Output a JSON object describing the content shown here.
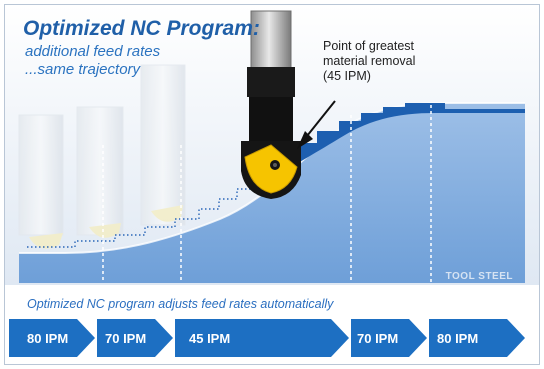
{
  "title": "Optimized NC Program:",
  "subtitle_lines": [
    "additional feed rates",
    "...same trajectory"
  ],
  "callout": {
    "line1": "Point of greatest",
    "line2": "material removal",
    "line3": "(45 IPM)"
  },
  "material_label": "TOOL STEEL",
  "bottom_caption": "Optimized NC program adjusts feed rates automatically",
  "feed_arrows": [
    {
      "label": "80 IPM"
    },
    {
      "label": "70 IPM"
    },
    {
      "label": "45 IPM"
    },
    {
      "label": "70 IPM"
    },
    {
      "label": "80 IPM"
    }
  ],
  "colors": {
    "steel_blue": "#7fa9dc",
    "arrow_blue": "#1d6fc2",
    "cutter_black": "#141414",
    "insert_yellow": "#f6c400"
  }
}
